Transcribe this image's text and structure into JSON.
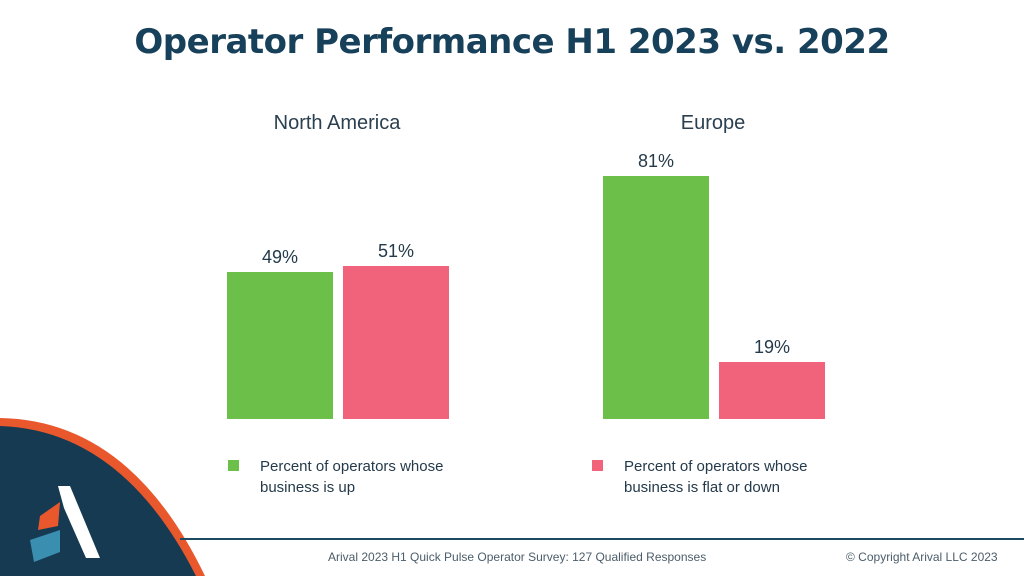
{
  "title": "Operator Performance H1 2023  vs. 2022",
  "colors": {
    "up": "#6cc04a",
    "down": "#f0637a",
    "title": "#17405a",
    "brand_dark": "#163a52",
    "brand_accent": "#e9582c"
  },
  "chart_data": [
    {
      "type": "bar",
      "title": "North America",
      "categories": [
        "Percent of operators whose business is up",
        "Percent of operators whose business is flat or down"
      ],
      "values": [
        49,
        51
      ],
      "labels": [
        "49%",
        "51%"
      ],
      "ylim": [
        0,
        100
      ]
    },
    {
      "type": "bar",
      "title": "Europe",
      "categories": [
        "Percent of operators whose business is up",
        "Percent of operators whose business is flat or down"
      ],
      "values": [
        81,
        19
      ],
      "labels": [
        "81%",
        "19%"
      ],
      "ylim": [
        0,
        100
      ]
    }
  ],
  "legend": {
    "up": "Percent of operators whose business is up",
    "down": "Percent of operators whose business is flat or down"
  },
  "footer": {
    "source": "Arival 2023 H1 Quick Pulse Operator Survey: 127 Qualified Responses",
    "copyright": "© Copyright Arival LLC 2023"
  },
  "logo_icon": "arival-logo-icon"
}
